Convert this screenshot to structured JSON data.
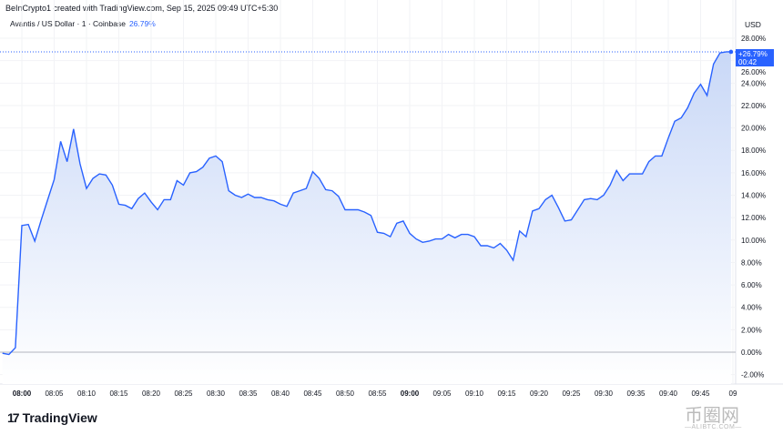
{
  "header": {
    "attribution": "BeInCrypto1 created with TradingView.com, Sep 15, 2025 09:49 UTC+5:30"
  },
  "legend": {
    "symbol": "Avantis / US Dollar · 1 · Coinbase",
    "change": "26.79%"
  },
  "axis": {
    "currency": "USD"
  },
  "price_label": {
    "value": "+26.79%",
    "countdown": "00:42"
  },
  "branding": {
    "logo": "TradingView",
    "watermark": "币圈网",
    "watermark_sub": "—ALIBTC.COM—"
  },
  "colors": {
    "line": "#2962ff",
    "fill_top": "#c9d8f7",
    "fill_bottom": "#ffffff",
    "label_bg": "#2962ff",
    "zero_line": "#b2b5be"
  },
  "chart_data": {
    "type": "area",
    "title": "",
    "xlabel": "",
    "ylabel": "",
    "x_start": "07:57",
    "x_interval_minutes": 1,
    "ylim": [
      -2.8,
      28.8
    ],
    "yticks": [
      "28.00%",
      "26.00%",
      "24.00%",
      "22.00%",
      "20.00%",
      "18.00%",
      "16.00%",
      "14.00%",
      "12.00%",
      "10.00%",
      "8.00%",
      "6.00%",
      "4.00%",
      "2.00%",
      "0.00%",
      "-2.00%"
    ],
    "xticks": [
      {
        "label": "08:00",
        "bold": true
      },
      {
        "label": "08:05"
      },
      {
        "label": "08:10"
      },
      {
        "label": "08:15"
      },
      {
        "label": "08:20"
      },
      {
        "label": "08:25"
      },
      {
        "label": "08:30"
      },
      {
        "label": "08:35"
      },
      {
        "label": "08:40"
      },
      {
        "label": "08:45"
      },
      {
        "label": "08:50"
      },
      {
        "label": "08:55"
      },
      {
        "label": "09:00",
        "bold": true
      },
      {
        "label": "09:05"
      },
      {
        "label": "09:10"
      },
      {
        "label": "09:15"
      },
      {
        "label": "09:20"
      },
      {
        "label": "09:25"
      },
      {
        "label": "09:30"
      },
      {
        "label": "09:35"
      },
      {
        "label": "09:40"
      },
      {
        "label": "09:45"
      },
      {
        "label": "09"
      }
    ],
    "grid": true,
    "values": [
      -0.1,
      -0.2,
      0.4,
      11.3,
      11.4,
      9.9,
      11.8,
      13.6,
      15.4,
      18.8,
      17.0,
      19.9,
      16.8,
      14.6,
      15.5,
      15.9,
      15.8,
      14.9,
      13.2,
      13.1,
      12.8,
      13.7,
      14.2,
      13.4,
      12.7,
      13.6,
      13.6,
      15.3,
      14.9,
      16.0,
      16.1,
      16.5,
      17.3,
      17.5,
      17.0,
      14.4,
      14.0,
      13.8,
      14.1,
      13.8,
      13.8,
      13.6,
      13.5,
      13.2,
      13.0,
      14.2,
      14.4,
      14.6,
      16.1,
      15.5,
      14.5,
      14.4,
      13.9,
      12.7,
      12.7,
      12.7,
      12.5,
      12.2,
      10.7,
      10.6,
      10.3,
      11.5,
      11.7,
      10.6,
      10.1,
      9.8,
      9.9,
      10.1,
      10.1,
      10.5,
      10.2,
      10.5,
      10.5,
      10.3,
      9.5,
      9.5,
      9.3,
      9.7,
      9.1,
      8.2,
      10.8,
      10.3,
      12.6,
      12.8,
      13.6,
      14.0,
      12.9,
      11.7,
      11.8,
      12.7,
      13.6,
      13.7,
      13.6,
      14.0,
      14.9,
      16.2,
      15.3,
      15.9,
      15.9,
      15.9,
      17.0,
      17.5,
      17.5,
      19.1,
      20.6,
      20.9,
      21.8,
      23.1,
      23.9,
      22.9,
      25.7,
      26.7,
      26.79
    ],
    "last_value": 26.79
  }
}
